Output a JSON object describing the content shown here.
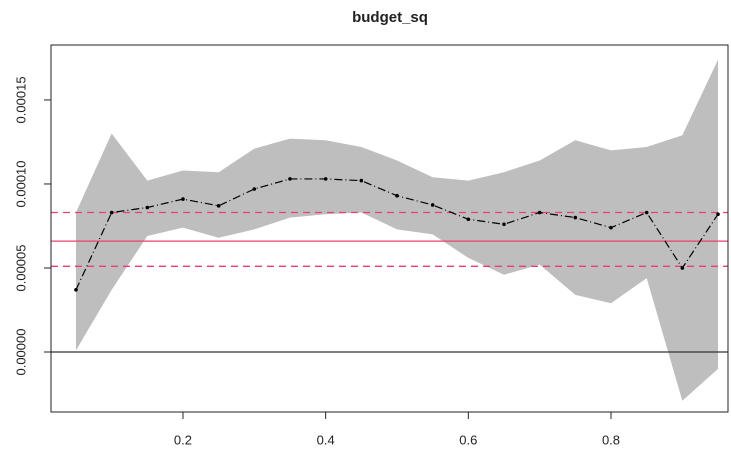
{
  "chart_data": {
    "type": "quantile-process",
    "title": "budget_sq",
    "x": [
      0.05,
      0.1,
      0.15,
      0.2,
      0.25,
      0.3,
      0.35,
      0.4,
      0.45,
      0.5,
      0.55,
      0.6,
      0.65,
      0.7,
      0.75,
      0.8,
      0.85,
      0.9,
      0.95
    ],
    "values": [
      3.7e-05,
      8.3e-05,
      8.6e-05,
      9.1e-05,
      8.7e-05,
      9.7e-05,
      0.000103,
      0.000103,
      0.000102,
      9.3e-05,
      8.75e-05,
      7.9e-05,
      7.6e-05,
      8.3e-05,
      8e-05,
      7.4e-05,
      8.3e-05,
      5e-05,
      8.2e-05
    ],
    "ci_upper": [
      8.3e-05,
      0.00013,
      0.000102,
      0.000108,
      0.000107,
      0.000121,
      0.000127,
      0.000126,
      0.000122,
      0.000114,
      0.000104,
      0.000102,
      0.000107,
      0.000114,
      0.000126,
      0.00012,
      0.000122,
      0.000129,
      0.000174
    ],
    "ci_lower": [
      1e-06,
      3.7e-05,
      6.9e-05,
      7.4e-05,
      6.8e-05,
      7.3e-05,
      8e-05,
      8.2e-05,
      8.3e-05,
      7.3e-05,
      7e-05,
      5.6e-05,
      4.6e-05,
      5.2e-05,
      3.4e-05,
      2.9e-05,
      4.4e-05,
      -2.9e-05,
      -1e-05
    ],
    "line_color": "#000000",
    "band_color": "#bebebe",
    "hlines": [
      {
        "value": 0,
        "color": "#333333",
        "style": "solid"
      },
      {
        "value": 6.6e-05,
        "color": "#e8416f",
        "style": "solid"
      },
      {
        "value": 8.3e-05,
        "color": "#e8416f",
        "style": "dashed"
      },
      {
        "value": 5.1e-05,
        "color": "#e8416f",
        "style": "dashed"
      }
    ],
    "xlim": [
      0.015,
      0.964
    ],
    "ylim": [
      -3.57e-05,
      0.0001827
    ],
    "xticks": [
      0.2,
      0.4,
      0.6,
      0.8
    ],
    "yticks": [
      {
        "value": 0,
        "label": "0.00000"
      },
      {
        "value": 5e-05,
        "label": "0.00005"
      },
      {
        "value": 0.0001,
        "label": "0.00010"
      },
      {
        "value": 0.00015,
        "label": "0.00015"
      }
    ]
  }
}
